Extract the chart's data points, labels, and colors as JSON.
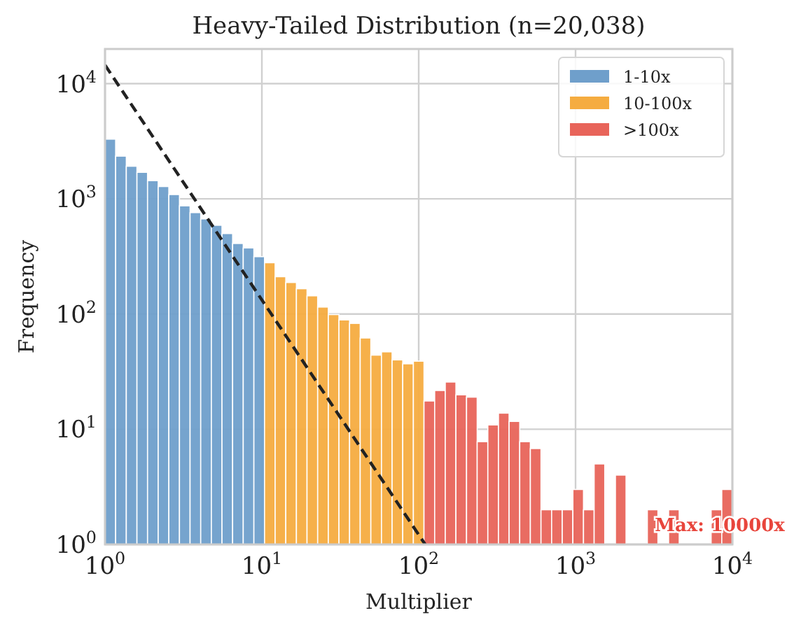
{
  "chart_data": {
    "type": "histogram",
    "title": "Heavy-Tailed Distribution (n=20,038)",
    "xlabel": "Multiplier",
    "ylabel": "Frequency",
    "bins": [
      1,
      1.169,
      1.367,
      1.598,
      1.867,
      2.183,
      2.552,
      2.983,
      3.486,
      4.075,
      4.764,
      5.569,
      6.51,
      7.609,
      8.895,
      10.4,
      12.15,
      14.21,
      16.61,
      19.41,
      22.69,
      26.53,
      31.01,
      36.25,
      42.37,
      49.53,
      57.9,
      67.68,
      79.12,
      92.49,
      108.1,
      126.4,
      147.7,
      172.7,
      201.9,
      236,
      275.9,
      322.5,
      377,
      440.7,
      515.1,
      602.2,
      703.9,
      822.8,
      961.7,
      1124,
      1314,
      1536,
      1796,
      2099,
      2454,
      2869,
      3353,
      3920,
      4582,
      5356,
      6261,
      7319,
      8555,
      10000
    ],
    "series": [
      {
        "name": "1-10x",
        "color": "#6f9fcb",
        "values": [
          3300,
          2350,
          1920,
          1700,
          1440,
          1280,
          1090,
          870,
          760,
          670,
          590,
          500,
          410,
          375,
          315,
          null,
          null,
          null,
          null,
          null,
          null,
          null,
          null,
          null,
          null,
          null,
          null,
          null,
          null,
          null,
          null,
          null,
          null,
          null,
          null,
          null,
          null,
          null,
          null,
          null,
          null,
          null,
          null,
          null,
          null,
          null,
          null,
          null,
          null,
          null,
          null,
          null,
          null,
          null,
          null,
          null,
          null,
          null,
          null
        ]
      },
      {
        "name": "10-100x",
        "color": "#f5ac40",
        "values": [
          null,
          null,
          null,
          null,
          null,
          null,
          null,
          null,
          null,
          null,
          null,
          null,
          null,
          null,
          null,
          279,
          211,
          188,
          166,
          144,
          115,
          99,
          89,
          83,
          62,
          44,
          47,
          40,
          37,
          39,
          null,
          null,
          null,
          null,
          null,
          null,
          null,
          null,
          null,
          null,
          null,
          null,
          null,
          null,
          null,
          null,
          null,
          null,
          null,
          null,
          null,
          null,
          null,
          null,
          null,
          null,
          null,
          null,
          null
        ]
      },
      {
        "name": ">100x",
        "color": "#e8645a",
        "values": [
          null,
          null,
          null,
          null,
          null,
          null,
          null,
          null,
          null,
          null,
          null,
          null,
          null,
          null,
          null,
          null,
          null,
          null,
          null,
          null,
          null,
          null,
          null,
          null,
          null,
          null,
          null,
          null,
          null,
          null,
          17.6,
          21.7,
          25.7,
          19.9,
          19,
          7.8,
          10.9,
          13.8,
          11.7,
          7.8,
          6.8,
          2,
          2,
          2,
          3,
          2,
          5,
          null,
          4,
          null,
          null,
          2,
          null,
          2,
          null,
          null,
          null,
          2,
          3
        ]
      },
      {
        "type": "line",
        "color": "#222222",
        "line_style": "dashed",
        "x": [
          1,
          110
        ],
        "values": [
          14500,
          1
        ]
      }
    ],
    "annotations": [
      {
        "text": "Max: 10000x",
        "x": 3200,
        "y": 1.5
      }
    ],
    "log": "xy",
    "xlim": [
      1,
      10000
    ],
    "ylim": [
      1,
      20000
    ],
    "xticks": [
      {
        "value": 1,
        "label": "10$^{0}$"
      },
      {
        "value": 10,
        "label": "10$^{1}$"
      },
      {
        "value": 100,
        "label": "10$^{2}$"
      },
      {
        "value": 1000,
        "label": "10$^{3}$"
      },
      {
        "value": 10000,
        "label": "10$^{4}$"
      }
    ],
    "yticks": [
      {
        "value": 1,
        "label": "10$^{0}$"
      },
      {
        "value": 10,
        "label": "10$^{1}$"
      },
      {
        "value": 100,
        "label": "10$^{2}$"
      },
      {
        "value": 1000,
        "label": "10$^{3}$"
      },
      {
        "value": 10000,
        "label": "10$^{4}$"
      }
    ],
    "grid": true,
    "legend": "top right"
  }
}
